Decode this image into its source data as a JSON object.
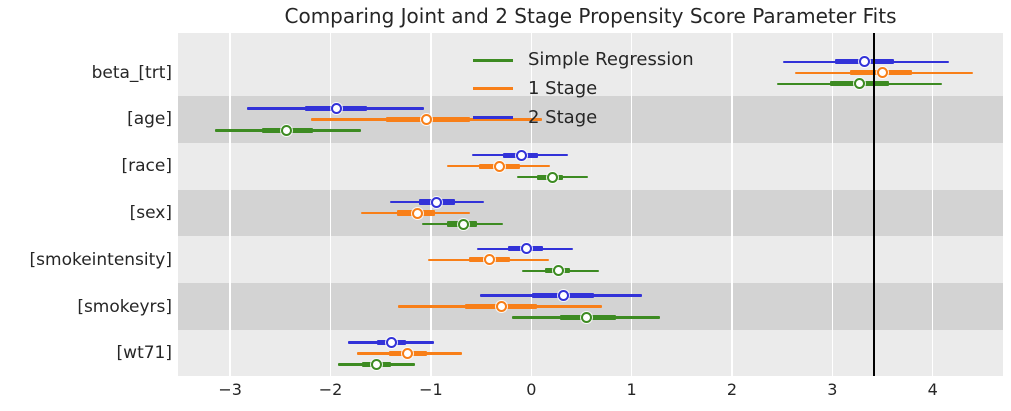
{
  "chart_data": {
    "type": "forest",
    "title": "Comparing Joint and 2 Stage Propensity Score Parameter Fits",
    "categories": [
      "beta_[trt]",
      "[age]",
      "[race]",
      "[sex]",
      "[smokeintensity]",
      "[smokeyrs]",
      "[wt71]"
    ],
    "x_ticks": [
      -3,
      -2,
      -1,
      0,
      1,
      2,
      3,
      4
    ],
    "xlim": [
      -3.52,
      4.7
    ],
    "reference_line_x": 3.41,
    "reference_line_color": "#000000",
    "grid": "white-vertical-gridlines",
    "legend_position": "upper-center-inside",
    "marker": "open-circle-white-fill",
    "band_colors": {
      "light": "#ebebeb",
      "dark": "#d3d3d3"
    },
    "text_color": "#262626",
    "series": [
      {
        "name": "Simple Regression",
        "color": "#3d8b22",
        "outer": [
          [
            2.45,
            4.09
          ],
          [
            -3.15,
            -1.7
          ],
          [
            -0.14,
            0.57
          ],
          [
            -1.09,
            -0.28
          ],
          [
            -0.09,
            0.67
          ],
          [
            -0.19,
            1.28
          ],
          [
            -1.93,
            -1.16
          ]
        ],
        "inner": [
          [
            2.98,
            3.56
          ],
          [
            -2.68,
            -2.17
          ],
          [
            0.06,
            0.32
          ],
          [
            -0.84,
            -0.54
          ],
          [
            0.14,
            0.39
          ],
          [
            0.29,
            0.84
          ],
          [
            -1.69,
            -1.4
          ]
        ],
        "point": [
          3.27,
          -2.44,
          0.21,
          -0.68,
          0.27,
          0.55,
          -1.54
        ]
      },
      {
        "name": "1 Stage",
        "color": "#f87f18",
        "outer": [
          [
            2.63,
            4.4
          ],
          [
            -2.19,
            0.11
          ],
          [
            -0.84,
            0.19
          ],
          [
            -1.7,
            -0.61
          ],
          [
            -1.03,
            0.18
          ],
          [
            -1.33,
            0.7
          ],
          [
            -1.74,
            -0.69
          ]
        ],
        "inner": [
          [
            3.18,
            3.79
          ],
          [
            -1.45,
            -0.61
          ],
          [
            -0.52,
            -0.11
          ],
          [
            -1.34,
            -0.96
          ],
          [
            -0.62,
            -0.21
          ],
          [
            -0.66,
            0.06
          ],
          [
            -1.42,
            -1.04
          ]
        ],
        "point": [
          3.5,
          -1.04,
          -0.32,
          -1.13,
          -0.42,
          -0.3,
          -1.23
        ]
      },
      {
        "name": "2 Stage",
        "color": "#3232d8",
        "outer": [
          [
            2.51,
            4.16
          ],
          [
            -2.83,
            -1.07
          ],
          [
            -0.59,
            0.37
          ],
          [
            -1.41,
            -0.47
          ],
          [
            -0.54,
            0.42
          ],
          [
            -0.51,
            1.1
          ],
          [
            -1.83,
            -0.97
          ]
        ],
        "inner": [
          [
            3.03,
            3.61
          ],
          [
            -2.25,
            -1.64
          ],
          [
            -0.28,
            0.07
          ],
          [
            -1.12,
            -0.76
          ],
          [
            -0.23,
            0.12
          ],
          [
            0.01,
            0.62
          ],
          [
            -1.54,
            -1.25
          ]
        ],
        "point": [
          3.32,
          -1.94,
          -0.1,
          -0.94,
          -0.05,
          0.32,
          -1.39
        ]
      }
    ]
  }
}
